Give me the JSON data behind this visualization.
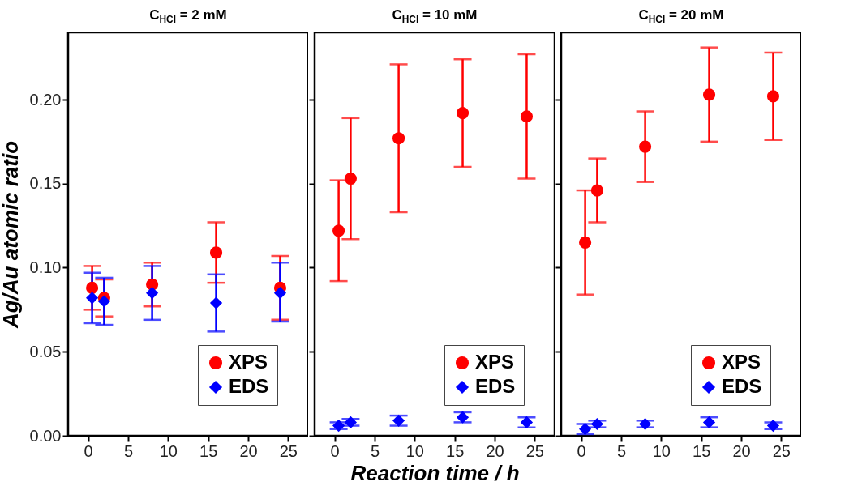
{
  "chart_data": [
    {
      "type": "scatter",
      "title": "C$_{HCl}$ = 2 mM",
      "ylabel": "Ag/Au atomic ratio",
      "x": [
        0.5,
        2,
        8,
        16,
        24
      ],
      "xlim": [
        -2.5,
        27.5
      ],
      "xticks": [
        0,
        5,
        10,
        15,
        20,
        25
      ],
      "ylim": [
        0,
        0.24
      ],
      "yticks": [
        {
          "value": 0,
          "label": "0.00"
        },
        {
          "value": 0.05,
          "label": "0.05"
        },
        {
          "value": 0.1,
          "label": "0.10"
        },
        {
          "value": 0.15,
          "label": "0.15"
        },
        {
          "value": 0.2,
          "label": "0.20"
        }
      ],
      "legend": "bottom right",
      "series": [
        {
          "name": "XPS",
          "color": "#ff0000",
          "marker": "circle",
          "values": [
            0.088,
            0.082,
            0.09,
            0.109,
            0.088
          ],
          "errors": [
            [
              0.075,
              0.101
            ],
            [
              0.071,
              0.093
            ],
            [
              0.077,
              0.103
            ],
            [
              0.091,
              0.127
            ],
            [
              0.069,
              0.107
            ]
          ]
        },
        {
          "name": "EDS",
          "color": "#0000ff",
          "marker": "diamond",
          "values": [
            0.082,
            0.08,
            0.085,
            0.079,
            0.085
          ],
          "errors": [
            [
              0.067,
              0.097
            ],
            [
              0.066,
              0.094
            ],
            [
              0.069,
              0.101
            ],
            [
              0.062,
              0.096
            ],
            [
              0.068,
              0.103
            ]
          ]
        }
      ]
    },
    {
      "type": "scatter",
      "title": "C$_{HCl}$ = 10 mM",
      "xlabel": "Reaction time / h",
      "x": [
        0.5,
        2,
        8,
        16,
        24
      ],
      "xlim": [
        -2.5,
        27.5
      ],
      "xticks": [
        0,
        5,
        10,
        15,
        20,
        25
      ],
      "ylim": [
        0,
        0.24
      ],
      "yticks": [
        {
          "value": 0,
          "label": null
        },
        {
          "value": 0.05,
          "label": null
        },
        {
          "value": 0.1,
          "label": null
        },
        {
          "value": 0.15,
          "label": null
        },
        {
          "value": 0.2,
          "label": null
        }
      ],
      "tick_labels": "x",
      "legend": "bottom right",
      "series": [
        {
          "name": "XPS",
          "color": "#ff0000",
          "marker": "circle",
          "values": [
            0.122,
            0.153,
            0.177,
            0.192,
            0.19
          ],
          "errors": [
            [
              0.092,
              0.152
            ],
            [
              0.117,
              0.189
            ],
            [
              0.133,
              0.221
            ],
            [
              0.16,
              0.224
            ],
            [
              0.153,
              0.227
            ]
          ]
        },
        {
          "name": "EDS",
          "color": "#0000ff",
          "marker": "diamond",
          "values": [
            0.006,
            0.008,
            0.009,
            0.011,
            0.008
          ],
          "errors": [
            [
              0.004,
              0.008
            ],
            [
              0.006,
              0.01
            ],
            [
              0.006,
              0.012
            ],
            [
              0.008,
              0.014
            ],
            [
              0.005,
              0.011
            ]
          ]
        }
      ]
    },
    {
      "type": "scatter",
      "title": "C$_{HCl}$ = 20 mM",
      "x": [
        0.5,
        2,
        8,
        16,
        24
      ],
      "xlim": [
        -2.5,
        27.5
      ],
      "xticks": [
        0,
        5,
        10,
        15,
        20,
        25
      ],
      "ylim": [
        0,
        0.24
      ],
      "yticks": [
        {
          "value": 0,
          "label": null
        },
        {
          "value": 0.05,
          "label": null
        },
        {
          "value": 0.1,
          "label": null
        },
        {
          "value": 0.15,
          "label": null
        },
        {
          "value": 0.2,
          "label": null
        }
      ],
      "tick_labels": "x",
      "legend": "bottom right",
      "series": [
        {
          "name": "XPS",
          "color": "#ff0000",
          "marker": "circle",
          "values": [
            0.115,
            0.146,
            0.172,
            0.203,
            0.202
          ],
          "errors": [
            [
              0.084,
              0.146
            ],
            [
              0.127,
              0.165
            ],
            [
              0.151,
              0.193
            ],
            [
              0.175,
              0.231
            ],
            [
              0.176,
              0.228
            ]
          ]
        },
        {
          "name": "EDS",
          "color": "#0000ff",
          "marker": "diamond",
          "values": [
            0.004,
            0.007,
            0.007,
            0.008,
            0.006
          ],
          "errors": [
            [
              0.001,
              0.007
            ],
            [
              0.005,
              0.009
            ],
            [
              0.005,
              0.009
            ],
            [
              0.005,
              0.011
            ],
            [
              0.004,
              0.008
            ]
          ]
        }
      ]
    }
  ]
}
